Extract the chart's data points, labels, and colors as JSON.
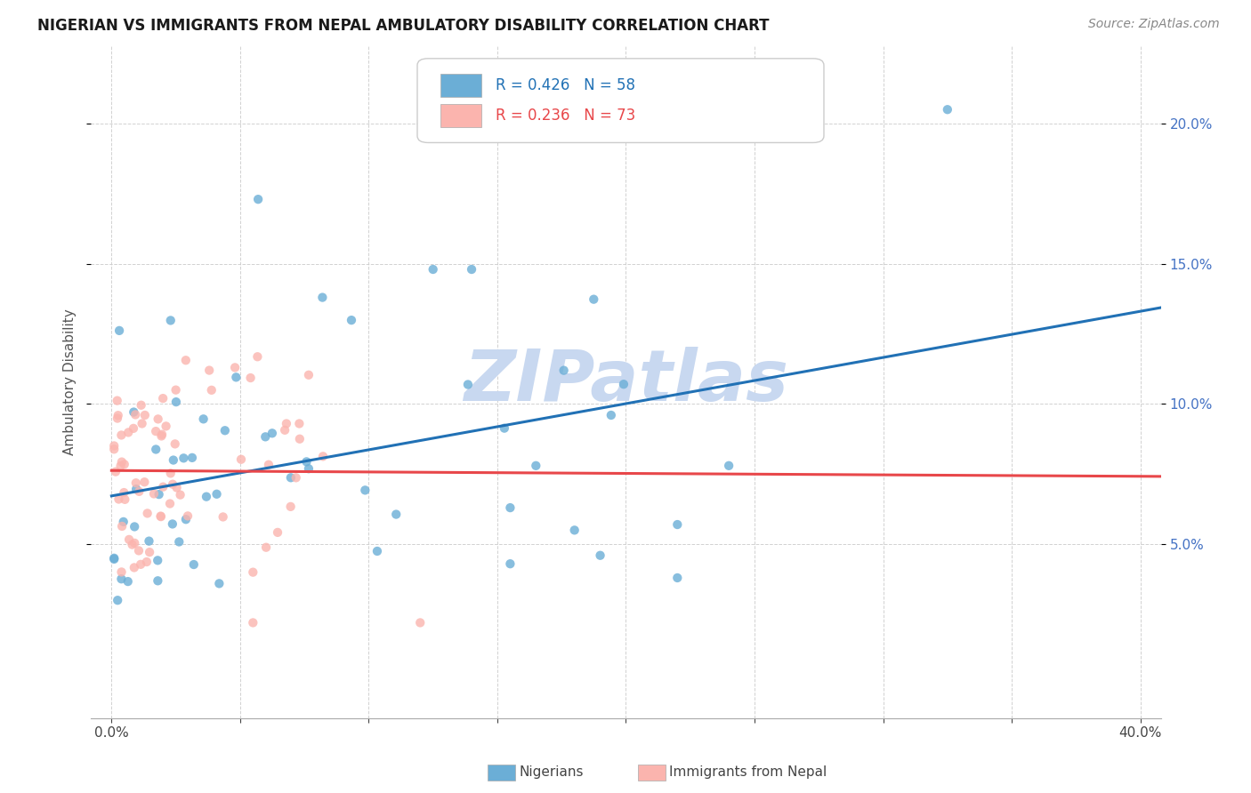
{
  "title": "NIGERIAN VS IMMIGRANTS FROM NEPAL AMBULATORY DISABILITY CORRELATION CHART",
  "source": "Source: ZipAtlas.com",
  "ylabel": "Ambulatory Disability",
  "watermark": "ZIPatlas",
  "watermark_color": "#c8d8f0",
  "background_color": "#ffffff",
  "blue_color": "#6baed6",
  "blue_line_color": "#2171b5",
  "pink_color": "#fbb4ae",
  "pink_line_color": "#e8474a",
  "R_nig": 0.426,
  "N_nig": 58,
  "R_nep": 0.236,
  "N_nep": 73,
  "ytick_color": "#4472c4",
  "ytick_labels": [
    "5.0%",
    "10.0%",
    "15.0%",
    "20.0%"
  ],
  "yticks": [
    0.05,
    0.1,
    0.15,
    0.2
  ],
  "title_fontsize": 12,
  "source_fontsize": 10,
  "tick_fontsize": 11
}
